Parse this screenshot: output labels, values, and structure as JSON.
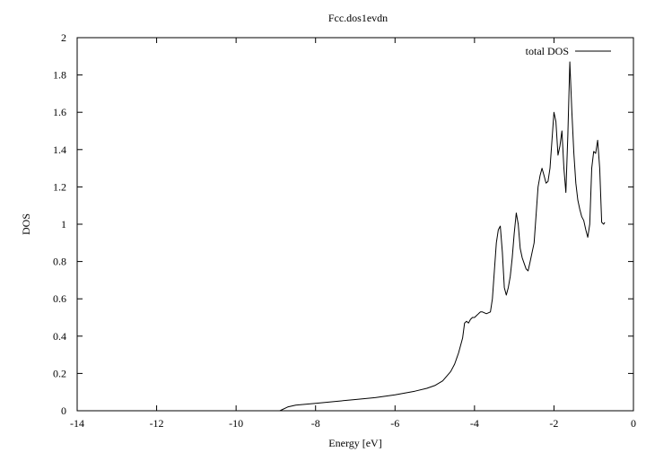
{
  "chart_data": {
    "type": "line",
    "title": "Fcc.dos1evdn",
    "xlabel": "Energy [eV]",
    "ylabel": "DOS",
    "xlim": [
      -14,
      0
    ],
    "ylim": [
      0,
      2
    ],
    "xticks": [
      "-14",
      "-12",
      "-10",
      "-8",
      "-6",
      "-4",
      "-2",
      "0"
    ],
    "yticks": [
      "0",
      "0.2",
      "0.4",
      "0.6",
      "0.8",
      "1",
      "1.2",
      "1.4",
      "1.6",
      "1.8",
      "2"
    ],
    "grid": false,
    "legend": "top-right",
    "series": [
      {
        "name": "total DOS",
        "color": "#000000",
        "x": [
          -8.9,
          -8.7,
          -8.5,
          -8.0,
          -7.5,
          -7.0,
          -6.5,
          -6.0,
          -5.5,
          -5.2,
          -5.0,
          -4.8,
          -4.6,
          -4.5,
          -4.4,
          -4.3,
          -4.25,
          -4.2,
          -4.15,
          -4.1,
          -4.05,
          -4.0,
          -3.95,
          -3.9,
          -3.85,
          -3.8,
          -3.7,
          -3.6,
          -3.55,
          -3.5,
          -3.45,
          -3.4,
          -3.35,
          -3.3,
          -3.25,
          -3.2,
          -3.15,
          -3.1,
          -3.05,
          -3.0,
          -2.95,
          -2.9,
          -2.85,
          -2.8,
          -2.75,
          -2.7,
          -2.65,
          -2.6,
          -2.55,
          -2.5,
          -2.45,
          -2.4,
          -2.35,
          -2.3,
          -2.25,
          -2.2,
          -2.15,
          -2.1,
          -2.05,
          -2.0,
          -1.95,
          -1.9,
          -1.85,
          -1.8,
          -1.75,
          -1.7,
          -1.65,
          -1.6,
          -1.55,
          -1.5,
          -1.45,
          -1.4,
          -1.35,
          -1.3,
          -1.25,
          -1.2,
          -1.15,
          -1.1,
          -1.05,
          -1.0,
          -0.95,
          -0.9,
          -0.85,
          -0.8,
          -0.75,
          -0.72
        ],
        "values": [
          0.0,
          0.02,
          0.03,
          0.04,
          0.05,
          0.06,
          0.07,
          0.085,
          0.105,
          0.12,
          0.135,
          0.16,
          0.21,
          0.25,
          0.31,
          0.39,
          0.47,
          0.48,
          0.47,
          0.49,
          0.5,
          0.5,
          0.51,
          0.52,
          0.53,
          0.53,
          0.52,
          0.53,
          0.6,
          0.75,
          0.9,
          0.97,
          0.99,
          0.85,
          0.66,
          0.62,
          0.66,
          0.72,
          0.82,
          0.95,
          1.06,
          1.0,
          0.87,
          0.82,
          0.79,
          0.76,
          0.75,
          0.8,
          0.85,
          0.9,
          1.05,
          1.2,
          1.26,
          1.3,
          1.26,
          1.22,
          1.23,
          1.3,
          1.45,
          1.6,
          1.55,
          1.37,
          1.42,
          1.5,
          1.3,
          1.17,
          1.48,
          1.87,
          1.6,
          1.38,
          1.22,
          1.13,
          1.08,
          1.04,
          1.02,
          0.97,
          0.93,
          1.0,
          1.3,
          1.39,
          1.38,
          1.45,
          1.3,
          1.01,
          1.0,
          1.01
        ]
      }
    ]
  }
}
